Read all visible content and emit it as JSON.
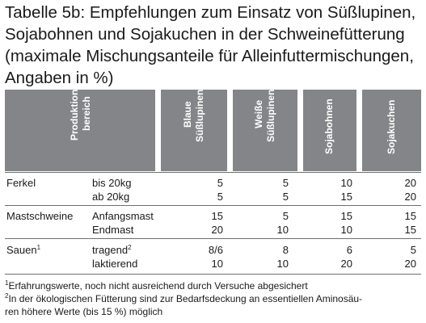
{
  "title_lines": [
    "Tabelle 5b: Empfehlungen zum Einsatz von Süßlupinen,",
    "Sojabohnen und Sojakuchen in der Schweinefütterung",
    "(maximale Mischungsanteile für Alleinfuttermischungen,",
    "Angaben in %)"
  ],
  "header": {
    "produktion": [
      "Produktions-",
      "bereich"
    ],
    "blaue": [
      "Blaue",
      "Süßlupinen"
    ],
    "weisse": [
      "Weiße",
      "Süßlupinen"
    ],
    "sojabohnen": [
      "Sojabohnen"
    ],
    "sojakuchen": [
      "Sojakuchen"
    ]
  },
  "groups": [
    {
      "name": "Ferkel",
      "sup": "",
      "rows": [
        {
          "label": "bis 20kg",
          "sup": "",
          "values": [
            "5",
            "5",
            "10",
            "20"
          ]
        },
        {
          "label": "ab 20kg",
          "sup": "",
          "values": [
            "5",
            "5",
            "15",
            "20"
          ]
        }
      ]
    },
    {
      "name": "Mastschweine",
      "sup": "",
      "rows": [
        {
          "label": "Anfangsmast",
          "sup": "",
          "values": [
            "15",
            "5",
            "15",
            "15"
          ]
        },
        {
          "label": "Endmast",
          "sup": "",
          "values": [
            "20",
            "10",
            "10",
            "15"
          ]
        }
      ]
    },
    {
      "name": "Sauen",
      "sup": "1",
      "rows": [
        {
          "label": "tragend",
          "sup": "2",
          "values": [
            "8/6",
            "8",
            "6",
            "5"
          ]
        },
        {
          "label": "laktierend",
          "sup": "",
          "values": [
            "10",
            "10",
            "20",
            "20"
          ]
        }
      ]
    }
  ],
  "footnotes": [
    {
      "mark": "1",
      "lines": [
        "Erfahrungswerte, noch nicht ausreichend durch Versuche abgesichert"
      ]
    },
    {
      "mark": "2",
      "lines": [
        "In der ökologischen Fütterung sind zur Bedarfsdeckung an essentiellen Aminosäu-",
        "ren höhere Werte (bis 15 %) möglich"
      ]
    }
  ],
  "colors": {
    "header_bg": "#848589",
    "header_text": "#ffffff",
    "rule": "#6d6e71"
  }
}
